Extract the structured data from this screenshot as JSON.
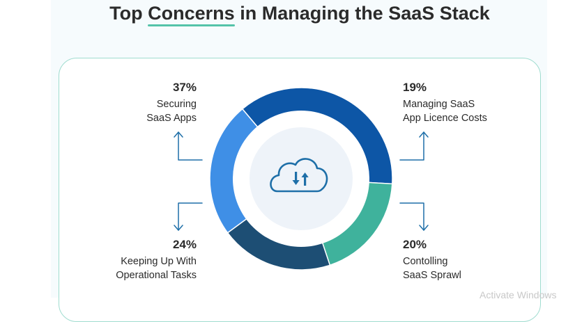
{
  "title": {
    "before": "Top ",
    "highlight": "Concerns",
    "after": " in Managing the SaaS Stack"
  },
  "colors": {
    "accent_underline": "#54c3a9",
    "card_border": "#9fdccf",
    "connector": "#1e6fa8",
    "cloud_icon": "#1e6fa8"
  },
  "center_icon": "cloud-upload-download-icon",
  "chart_data": {
    "type": "pie",
    "donut": true,
    "title": "Top Concerns in Managing the SaaS Stack",
    "slices": [
      {
        "value": 37,
        "label": "37%",
        "lines": [
          "Securing",
          "SaaS Apps"
        ],
        "color": "#0d56a6",
        "position": "top-left"
      },
      {
        "value": 19,
        "label": "19%",
        "lines": [
          "Managing SaaS",
          "App Licence Costs"
        ],
        "color": "#3fb29c",
        "position": "top-right"
      },
      {
        "value": 20,
        "label": "20%",
        "lines": [
          "Contolling",
          "SaaS Sprawl"
        ],
        "color": "#1d4e74",
        "position": "bottom-right"
      },
      {
        "value": 24,
        "label": "24%",
        "lines": [
          "Keeping Up With",
          "Operational Tasks"
        ],
        "color": "#3f8fe6",
        "position": "bottom-left"
      }
    ]
  },
  "watermark": "Activate Windows"
}
